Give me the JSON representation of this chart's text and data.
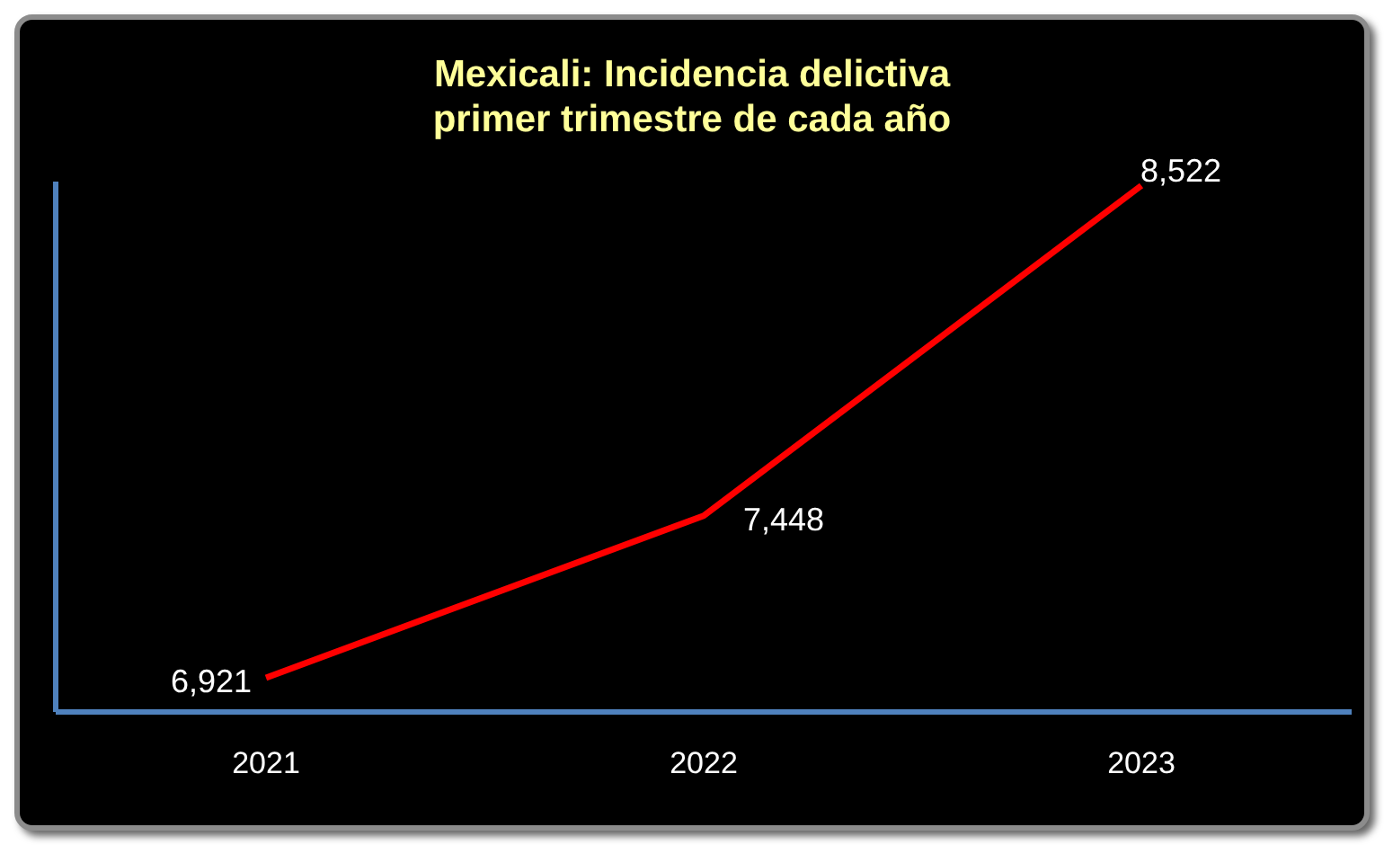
{
  "chart_data": {
    "type": "line",
    "title": "Mexicali: Incidencia delictiva\nprimer trimestre de cada año",
    "categories": [
      "2021",
      "2022",
      "2023"
    ],
    "values": [
      6921,
      7448,
      8522
    ],
    "value_labels": [
      "6,921",
      "7,448",
      "8,522"
    ],
    "ylim": [
      6810,
      8535
    ],
    "tick_labels": "x",
    "color": "#ff0000",
    "legend": false,
    "grid": false
  }
}
